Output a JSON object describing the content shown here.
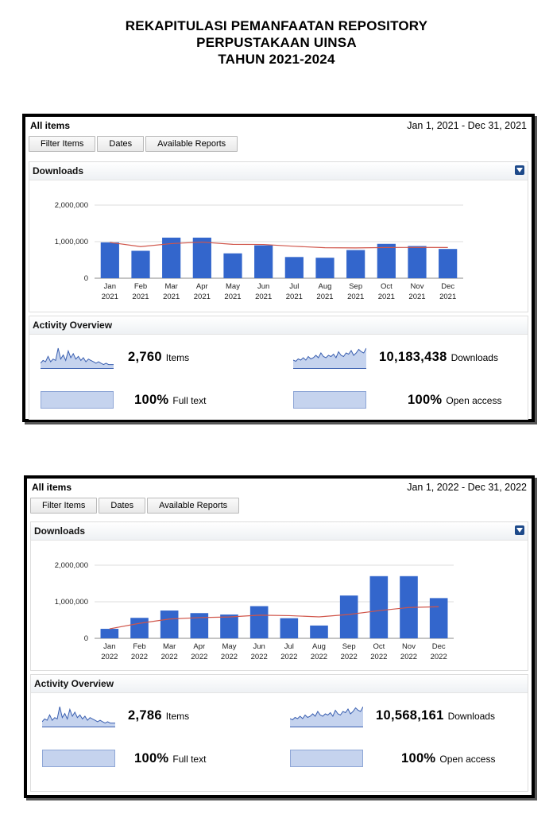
{
  "header": {
    "line1": "REKAPITULASI PEMANFAATAN REPOSITORY",
    "line2": "PERPUSTAKAAN UINSA",
    "line3": "TAHUN 2021-2024"
  },
  "panels": [
    {
      "title": "All items",
      "date_range": "Jan 1, 2021 - Dec 31, 2021",
      "buttons": [
        "Filter Items",
        "Dates",
        "Available Reports"
      ],
      "downloads_label": "Downloads",
      "activity_label": "Activity Overview",
      "items_value": "2,760",
      "items_unit": "Items",
      "downloads_value": "10,183,438",
      "downloads_unit": "Downloads",
      "fulltext_value": "100%",
      "fulltext_unit": "Full text",
      "openaccess_value": "100%",
      "openaccess_unit": "Open access",
      "fulltext_fraction": 1.0,
      "openaccess_fraction": 1.0
    },
    {
      "title": "All items",
      "date_range": "Jan 1, 2022 - Dec 31, 2022",
      "buttons": [
        "Filter Items",
        "Dates",
        "Available Reports"
      ],
      "downloads_label": "Downloads",
      "activity_label": "Activity Overview",
      "items_value": "2,786",
      "items_unit": "Items",
      "downloads_value": "10,568,161",
      "downloads_unit": "Downloads",
      "fulltext_value": "100%",
      "fulltext_unit": "Full text",
      "openaccess_value": "100%",
      "openaccess_unit": "Open access",
      "fulltext_fraction": 1.0,
      "openaccess_fraction": 1.0
    }
  ],
  "colors": {
    "bar": "#3366cc",
    "trend": "#d0554a",
    "grid": "#dddddd"
  },
  "chart_data": [
    {
      "type": "bar",
      "categories": [
        "Jan 2021",
        "Feb 2021",
        "Mar 2021",
        "Apr 2021",
        "May 2021",
        "Jun 2021",
        "Jul 2021",
        "Aug 2021",
        "Sep 2021",
        "Oct 2021",
        "Nov 2021",
        "Dec 2021"
      ],
      "x_month_labels": [
        "Jan",
        "Feb",
        "Mar",
        "Apr",
        "May",
        "Jun",
        "Jul",
        "Aug",
        "Sep",
        "Oct",
        "Nov",
        "Dec"
      ],
      "x_year_label": "2021",
      "values": [
        980000,
        750000,
        1110000,
        1110000,
        680000,
        900000,
        580000,
        560000,
        770000,
        940000,
        880000,
        800000
      ],
      "trend": [
        980000,
        865000,
        947000,
        988000,
        927000,
        923000,
        874000,
        835000,
        828000,
        839000,
        843000,
        840000
      ],
      "ylim": [
        0,
        2000000
      ],
      "yticks": [
        0,
        1000000,
        2000000
      ],
      "ytick_labels": [
        "0",
        "1,000,000",
        "2,000,000"
      ],
      "grid": true
    },
    {
      "type": "bar",
      "categories": [
        "Jan 2022",
        "Feb 2022",
        "Mar 2022",
        "Apr 2022",
        "May 2022",
        "Jun 2022",
        "Jul 2022",
        "Aug 2022",
        "Sep 2022",
        "Oct 2022",
        "Nov 2022",
        "Dec 2022"
      ],
      "x_month_labels": [
        "Jan",
        "Feb",
        "Mar",
        "Apr",
        "May",
        "Jun",
        "Jul",
        "Aug",
        "Sep",
        "Oct",
        "Nov",
        "Dec"
      ],
      "x_year_label": "2022",
      "values": [
        260000,
        560000,
        760000,
        690000,
        650000,
        880000,
        550000,
        350000,
        1170000,
        1700000,
        1700000,
        1100000
      ],
      "trend": [
        260000,
        410000,
        527000,
        567000,
        584000,
        633000,
        621000,
        587000,
        652000,
        757000,
        843000,
        864000
      ],
      "ylim": [
        0,
        2000000
      ],
      "yticks": [
        0,
        1000000,
        2000000
      ],
      "ytick_labels": [
        "0",
        "1,000,000",
        "2,000,000"
      ],
      "grid": true
    }
  ],
  "sparklines": {
    "items": [
      3,
      5,
      4,
      8,
      4,
      6,
      5,
      14,
      6,
      9,
      5,
      12,
      7,
      10,
      6,
      8,
      5,
      7,
      4,
      6,
      5,
      4,
      3,
      4,
      3,
      2,
      3,
      2,
      2,
      2
    ],
    "downloads": [
      6,
      5,
      7,
      6,
      8,
      6,
      9,
      7,
      8,
      10,
      8,
      12,
      9,
      8,
      10,
      9,
      11,
      8,
      13,
      10,
      9,
      12,
      11,
      14,
      10,
      12,
      15,
      13,
      12,
      16
    ]
  }
}
